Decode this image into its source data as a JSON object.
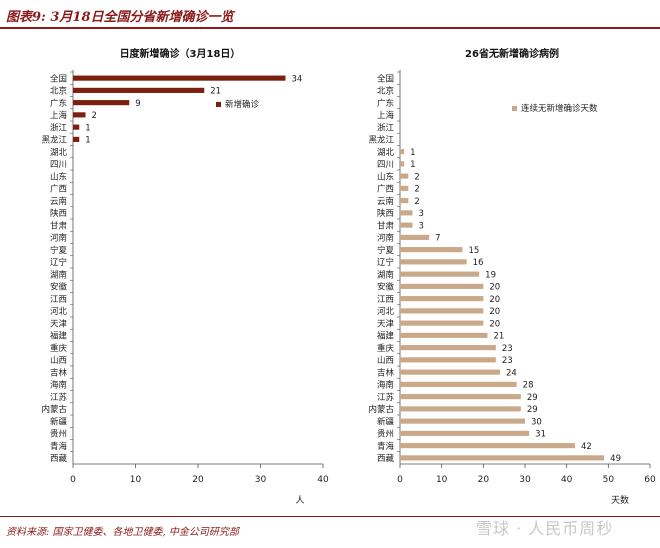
{
  "figure_title": "图表9: 3月18日全国分省新增确诊一览",
  "source": "资料来源: 国家卫健委、各地卫健委, 中金公司研究部",
  "watermark": "雪球 · 人民币周秒",
  "chart_data": [
    {
      "type": "bar",
      "orientation": "horizontal",
      "title": "日度新增确诊（3月18日）",
      "xlabel": "人",
      "ylabel": "",
      "xlim": [
        0,
        40
      ],
      "xticks": [
        0,
        10,
        20,
        30,
        40
      ],
      "legend": "center-right",
      "grid": false,
      "categories": [
        "全国",
        "北京",
        "广东",
        "上海",
        "浙江",
        "黑龙江",
        "湖北",
        "四川",
        "山东",
        "广西",
        "云南",
        "陕西",
        "甘肃",
        "河南",
        "宁夏",
        "辽宁",
        "湖南",
        "安徽",
        "江西",
        "河北",
        "天津",
        "福建",
        "重庆",
        "山西",
        "吉林",
        "海南",
        "江苏",
        "内蒙古",
        "新疆",
        "贵州",
        "青海",
        "西藏"
      ],
      "series": [
        {
          "name": "新增确诊",
          "color": "#7b1f0e",
          "values": [
            34,
            21,
            9,
            2,
            1,
            1,
            null,
            null,
            null,
            null,
            null,
            null,
            null,
            null,
            null,
            null,
            null,
            null,
            null,
            null,
            null,
            null,
            null,
            null,
            null,
            null,
            null,
            null,
            null,
            null,
            null,
            null
          ]
        }
      ]
    },
    {
      "type": "bar",
      "orientation": "horizontal",
      "title": "26省无新增确诊病例",
      "xlabel": "天数",
      "ylabel": "",
      "xlim": [
        0,
        60
      ],
      "xticks": [
        0,
        10,
        20,
        30,
        40,
        50,
        60
      ],
      "legend": "top-right",
      "grid": false,
      "categories": [
        "全国",
        "北京",
        "广东",
        "上海",
        "浙江",
        "黑龙江",
        "湖北",
        "四川",
        "山东",
        "广西",
        "云南",
        "陕西",
        "甘肃",
        "河南",
        "宁夏",
        "辽宁",
        "湖南",
        "安徽",
        "江西",
        "河北",
        "天津",
        "福建",
        "重庆",
        "山西",
        "吉林",
        "海南",
        "江苏",
        "内蒙古",
        "新疆",
        "贵州",
        "青海",
        "西藏"
      ],
      "series": [
        {
          "name": "连续无新增确诊天数",
          "color": "#c9a98a",
          "values": [
            null,
            null,
            null,
            null,
            null,
            null,
            1,
            1,
            2,
            2,
            2,
            3,
            3,
            7,
            15,
            16,
            19,
            20,
            20,
            20,
            20,
            21,
            23,
            23,
            24,
            28,
            29,
            29,
            30,
            31,
            42,
            49
          ]
        }
      ]
    }
  ]
}
